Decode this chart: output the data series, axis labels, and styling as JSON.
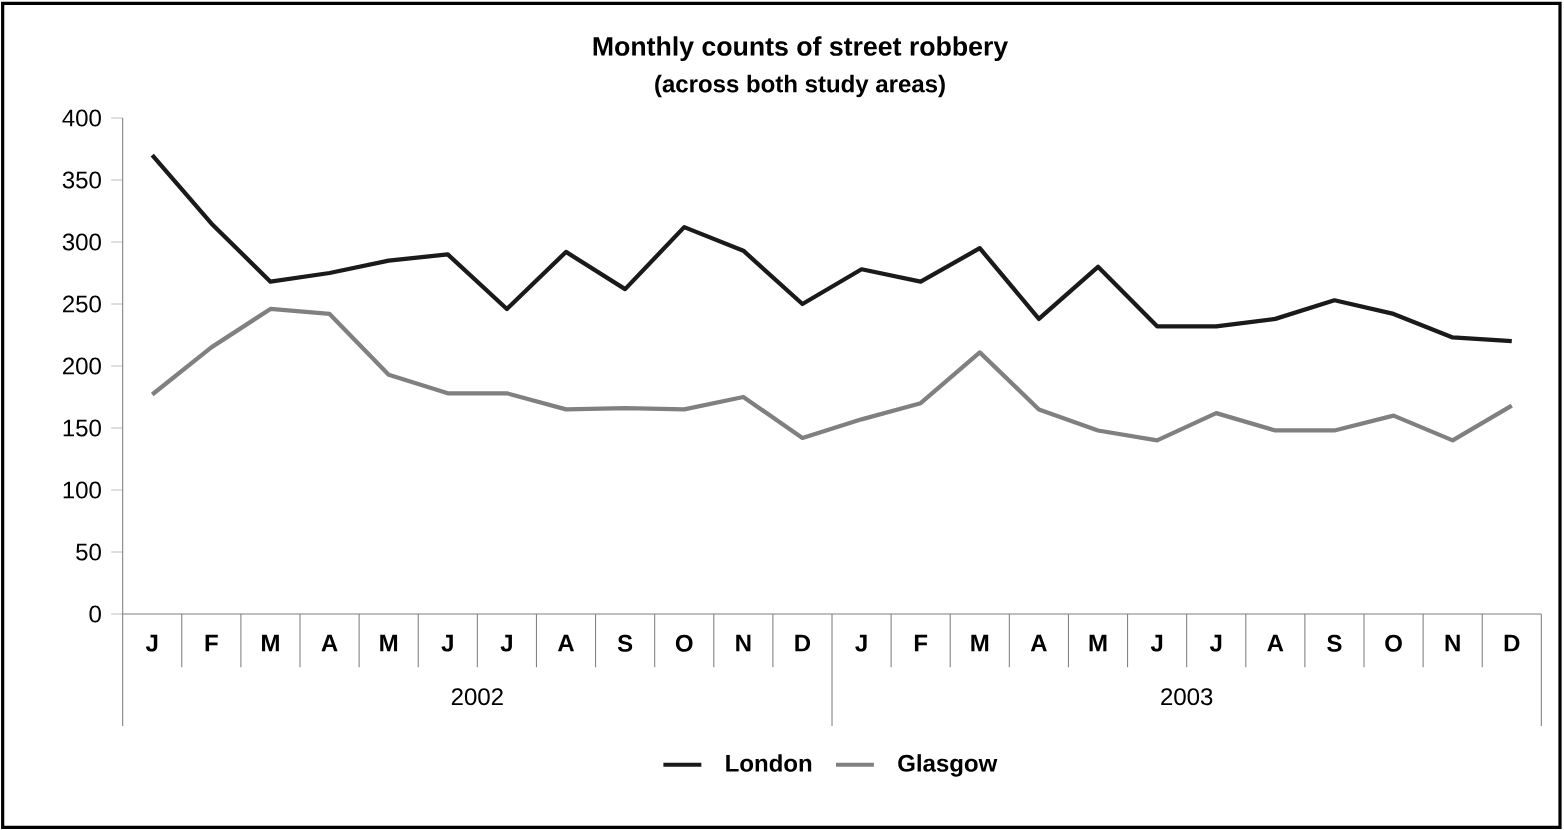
{
  "chart_data": {
    "type": "line",
    "title": "Monthly counts of street robbery",
    "subtitle": "(across both study areas)",
    "categories": [
      "J",
      "F",
      "M",
      "A",
      "M",
      "J",
      "J",
      "A",
      "S",
      "O",
      "N",
      "D",
      "J",
      "F",
      "M",
      "A",
      "M",
      "J",
      "J",
      "A",
      "S",
      "O",
      "N",
      "D"
    ],
    "annotations": [
      "2002",
      "2003"
    ],
    "series": [
      {
        "name": "London",
        "color": "#1a1a1a",
        "values": [
          370,
          315,
          268,
          275,
          285,
          290,
          246,
          292,
          262,
          312,
          293,
          250,
          278,
          268,
          295,
          238,
          280,
          232,
          232,
          238,
          253,
          242,
          223,
          220
        ]
      },
      {
        "name": "Glasgow",
        "color": "#808080",
        "values": [
          177,
          215,
          246,
          242,
          193,
          178,
          178,
          165,
          166,
          165,
          175,
          142,
          157,
          170,
          211,
          165,
          148,
          140,
          162,
          148,
          148,
          160,
          140,
          168
        ]
      }
    ],
    "ylim": [
      0,
      400
    ],
    "yticks": [
      0,
      50,
      100,
      150,
      200,
      250,
      300,
      350,
      400
    ],
    "grid": false,
    "legend": "bottom",
    "marker": "none",
    "line_style": "solid"
  }
}
